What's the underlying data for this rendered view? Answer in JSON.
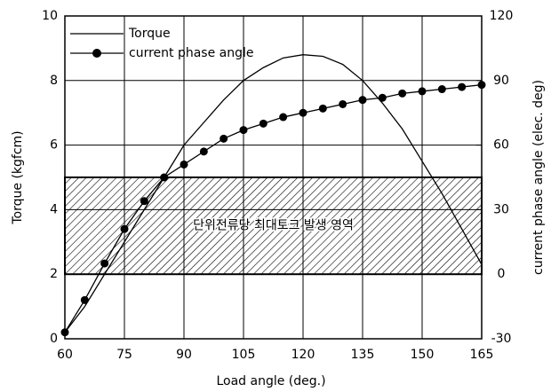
{
  "chart_data": {
    "type": "line",
    "xlabel": "Load angle (deg.)",
    "ylabel": "Torque (kgfcm)",
    "y2label": "current phase angle (elec. deg)",
    "x": [
      60,
      65,
      70,
      75,
      80,
      85,
      90,
      95,
      100,
      105,
      110,
      115,
      120,
      125,
      130,
      135,
      140,
      145,
      150,
      155,
      160,
      165
    ],
    "series": [
      {
        "name": "Torque",
        "color": "#000000",
        "marker": false,
        "values": [
          0.2,
          1.0,
          2.0,
          3.0,
          4.0,
          5.0,
          6.0,
          6.7,
          7.4,
          8.0,
          8.4,
          8.7,
          8.8,
          8.75,
          8.5,
          8.0,
          7.3,
          6.5,
          5.5,
          4.5,
          3.4,
          2.3
        ]
      },
      {
        "name": "current phase angle",
        "color": "#000000",
        "marker": true,
        "axis": "y2",
        "values": [
          -27,
          -12,
          5,
          21,
          34,
          45,
          51,
          57,
          63,
          67,
          70,
          73,
          75,
          77,
          79,
          81,
          82,
          84,
          85,
          86,
          87,
          88
        ]
      }
    ],
    "xlim": [
      60,
      165
    ],
    "xticks": [
      60,
      75,
      90,
      105,
      120,
      135,
      150,
      165
    ],
    "ylim": [
      0,
      10
    ],
    "yticks": [
      0,
      2,
      4,
      6,
      8,
      10
    ],
    "y2lim": [
      -30,
      120
    ],
    "y2ticks": [
      -30,
      0,
      30,
      60,
      90,
      120
    ],
    "grid": true,
    "legend": "upper left",
    "region": {
      "ylim": [
        2,
        5
      ],
      "label": "단위전류당 최대토크 발생 영역"
    }
  }
}
